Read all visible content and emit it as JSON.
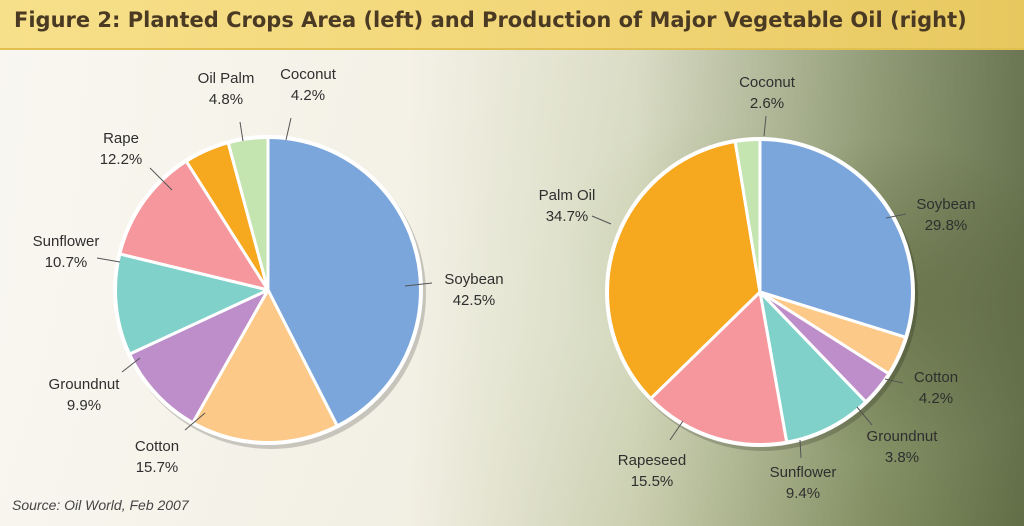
{
  "header": {
    "title": "Figure 2: Planted Crops Area (left) and Production of Major Vegetable Oil (right)"
  },
  "footer": {
    "source": "Source: Oil World, Feb 2007"
  },
  "colors": {
    "soybean": "#7ba6db",
    "cotton": "#fcc988",
    "groundnut": "#bd8ec9",
    "sunflower": "#7fd1c9",
    "rape": "#f5979c",
    "palm": "#f6a81e",
    "coconut": "#c4e5b0"
  },
  "chart_data": [
    {
      "type": "pie",
      "start_angle": 0,
      "direction": "clockwise",
      "slices": [
        {
          "name": "Soybean",
          "value": 42.5,
          "label": "42.5%",
          "color": "#7ba6db"
        },
        {
          "name": "Cotton",
          "value": 15.7,
          "label": "15.7%",
          "color": "#fcc988"
        },
        {
          "name": "Groundnut",
          "value": 9.9,
          "label": "9.9%",
          "color": "#bd8ec9"
        },
        {
          "name": "Sunflower",
          "value": 10.7,
          "label": "10.7%",
          "color": "#7fd1c9"
        },
        {
          "name": "Rape",
          "value": 12.2,
          "label": "12.2%",
          "color": "#f5979c"
        },
        {
          "name": "Oil Palm",
          "value": 4.8,
          "label": "4.8%",
          "color": "#f6a81e"
        },
        {
          "name": "Coconut",
          "value": 4.2,
          "label": "4.2%",
          "color": "#c4e5b0"
        }
      ]
    },
    {
      "type": "pie",
      "start_angle": 0,
      "direction": "clockwise",
      "slices": [
        {
          "name": "Soybean",
          "value": 29.8,
          "label": "29.8%",
          "color": "#7ba6db"
        },
        {
          "name": "Cotton",
          "value": 4.2,
          "label": "4.2%",
          "color": "#fcc988"
        },
        {
          "name": "Groundnut",
          "value": 3.8,
          "label": "3.8%",
          "color": "#bd8ec9"
        },
        {
          "name": "Sunflower",
          "value": 9.4,
          "label": "9.4%",
          "color": "#7fd1c9"
        },
        {
          "name": "Rapeseed",
          "value": 15.5,
          "label": "15.5%",
          "color": "#f5979c"
        },
        {
          "name": "Palm Oil",
          "value": 34.7,
          "label": "34.7%",
          "color": "#f6a81e"
        },
        {
          "name": "Coconut",
          "value": 2.6,
          "label": "2.6%",
          "color": "#c4e5b0"
        }
      ]
    }
  ]
}
